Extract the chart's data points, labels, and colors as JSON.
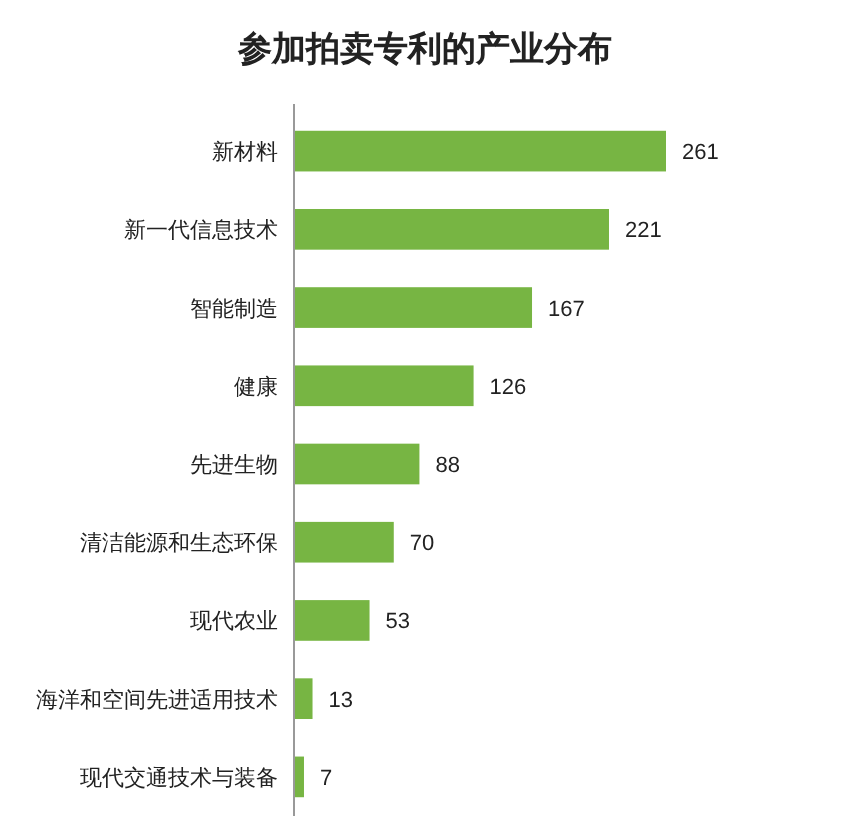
{
  "chart_data": {
    "type": "bar",
    "orientation": "horizontal",
    "title": "参加拍卖专利的产业分布",
    "categories": [
      "新材料",
      "新一代信息技术",
      "智能制造",
      "健康",
      "先进生物",
      "清洁能源和生态环保",
      "现代农业",
      "海洋和空间先进适用技术",
      "现代交通技术与装备"
    ],
    "values": [
      261,
      221,
      167,
      126,
      88,
      70,
      53,
      13,
      7
    ],
    "color": "#77b543",
    "data_labels": true
  }
}
